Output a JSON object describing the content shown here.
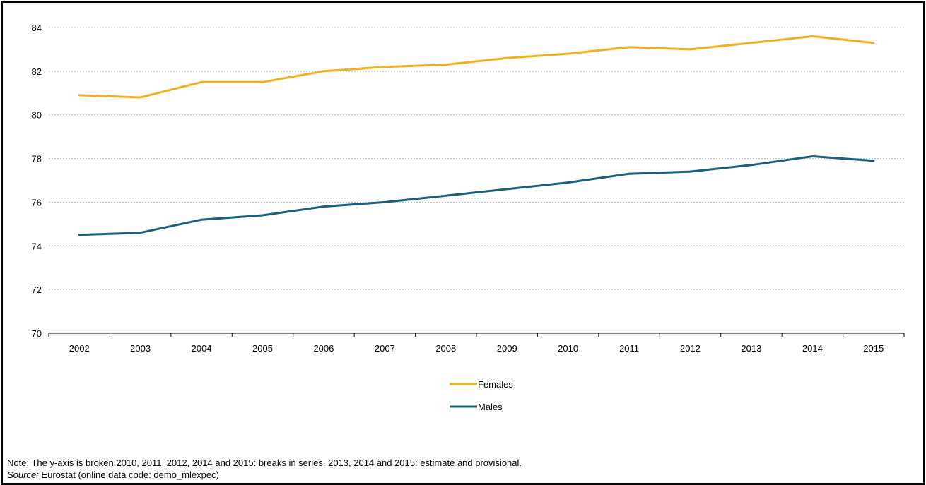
{
  "chart_data": {
    "type": "line",
    "title": "",
    "xlabel": "",
    "ylabel": "",
    "categories": [
      "2002",
      "2003",
      "2004",
      "2005",
      "2006",
      "2007",
      "2008",
      "2009",
      "2010",
      "2011",
      "2012",
      "2013",
      "2014",
      "2015"
    ],
    "ylim": [
      70,
      84
    ],
    "yticks": [
      70,
      72,
      74,
      76,
      78,
      80,
      82,
      84
    ],
    "grid": true,
    "legend_position": "bottom-center",
    "series": [
      {
        "name": "Females",
        "color": "#F2B01E",
        "values": [
          80.9,
          80.8,
          81.5,
          81.5,
          82.0,
          82.2,
          82.3,
          82.6,
          82.8,
          83.1,
          83.0,
          83.3,
          83.6,
          83.3
        ]
      },
      {
        "name": "Males",
        "color": "#17607E",
        "values": [
          74.5,
          74.6,
          75.2,
          75.4,
          75.8,
          76.0,
          76.3,
          76.6,
          76.9,
          77.3,
          77.4,
          77.7,
          78.1,
          77.9
        ]
      }
    ]
  },
  "note": {
    "text": "Note: The y-axis is broken.2010, 2011, 2012, 2014 and 2015: breaks in series.  2013, 2014 and 2015: estimate and provisional.",
    "source_label": "Source:",
    "source_text": " Eurostat (online data code: demo_mlexpec)"
  }
}
